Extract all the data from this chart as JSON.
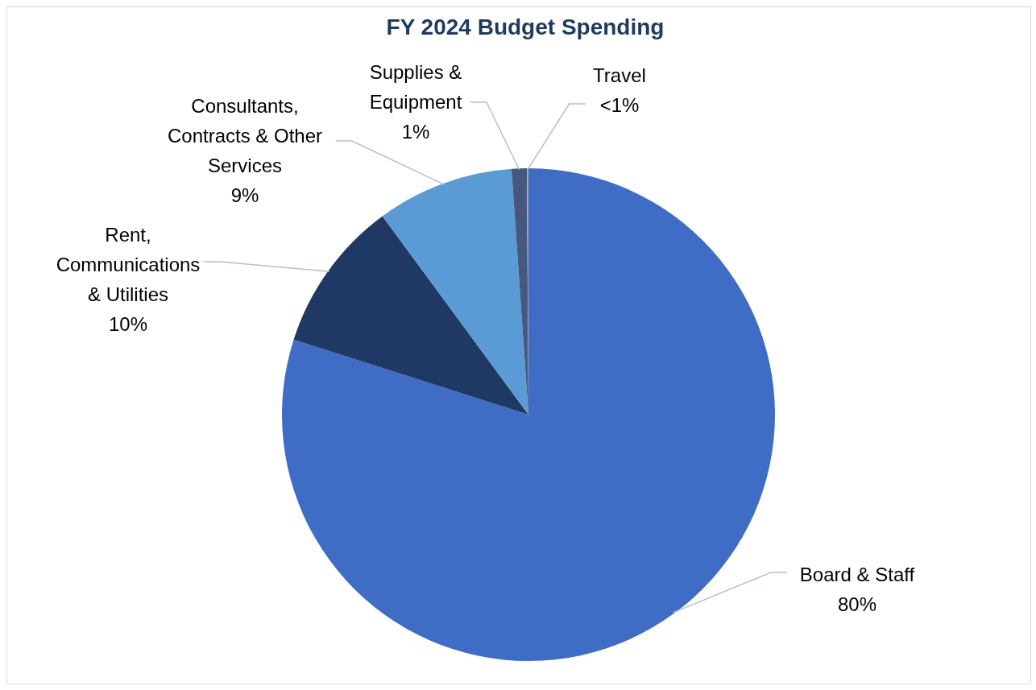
{
  "chart_data": {
    "type": "pie",
    "title": "FY 2024 Budget Spending",
    "categories": [
      "Board & Staff",
      "Rent, Communications & Utilities",
      "Consultants, Contracts & Other Services",
      "Supplies & Equipment",
      "Travel"
    ],
    "values": [
      80,
      10,
      9,
      1,
      0.1
    ],
    "value_labels": [
      "80%",
      "10%",
      "9%",
      "1%",
      "<1%"
    ],
    "colors": [
      "#3f6dc6",
      "#203864",
      "#5b9bd5",
      "#46587f",
      "#a5a5a5"
    ],
    "legend": false
  }
}
